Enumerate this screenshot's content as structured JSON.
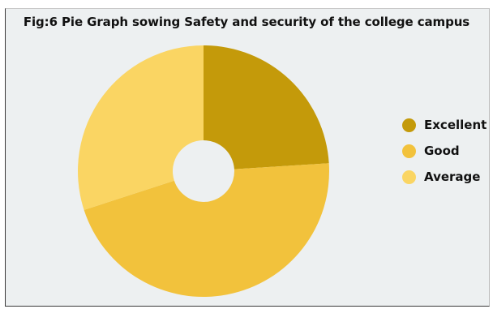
{
  "chart_data": {
    "type": "pie",
    "title": "Fig:6 Pie Graph sowing Safety and security of the college campus",
    "donut": true,
    "legend_position": "right",
    "series": [
      {
        "name": "Excellent",
        "value": 24,
        "color": "#c49a0a"
      },
      {
        "name": "Good",
        "value": 46,
        "color": "#f2c23c"
      },
      {
        "name": "Average",
        "value": 30,
        "color": "#fad563"
      }
    ]
  }
}
